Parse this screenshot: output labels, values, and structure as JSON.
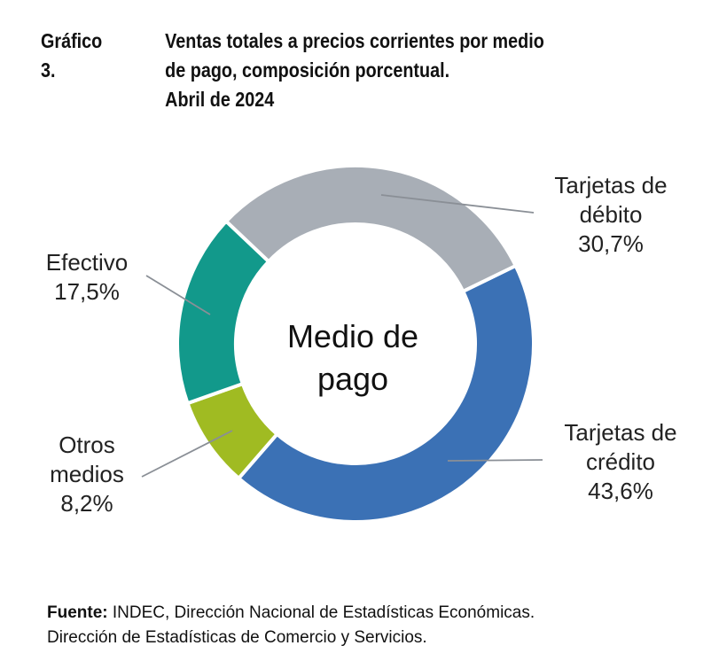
{
  "title": {
    "number": "Gráfico 3.",
    "lines": [
      "Ventas totales a precios corrientes por medio",
      "de pago, composición porcentual.",
      "Abril de 2024"
    ]
  },
  "chart_data": {
    "type": "pie",
    "donut": true,
    "center_label": [
      "Medio de",
      "pago"
    ],
    "unit": "%",
    "slices": [
      {
        "name": "Tarjetas de crédito",
        "label_lines": [
          "Tarjetas de",
          "crédito"
        ],
        "value": 43.6,
        "value_label": "43,6%",
        "color": "#3b71b5"
      },
      {
        "name": "Otros medios",
        "label_lines": [
          "Otros",
          "medios"
        ],
        "value": 8.2,
        "value_label": "8,2%",
        "color": "#a0bb22"
      },
      {
        "name": "Efectivo",
        "label_lines": [
          "Efectivo"
        ],
        "value": 17.5,
        "value_label": "17,5%",
        "color": "#12998b"
      },
      {
        "name": "Tarjetas de débito",
        "label_lines": [
          "Tarjetas de",
          "débito"
        ],
        "value": 30.7,
        "value_label": "30,7%",
        "color": "#a8aeb6"
      }
    ]
  },
  "source": {
    "bold": "Fuente:",
    "line1": " INDEC, Dirección Nacional de Estadísticas Económicas.",
    "line2": "Dirección de Estadísticas de Comercio y Servicios."
  }
}
